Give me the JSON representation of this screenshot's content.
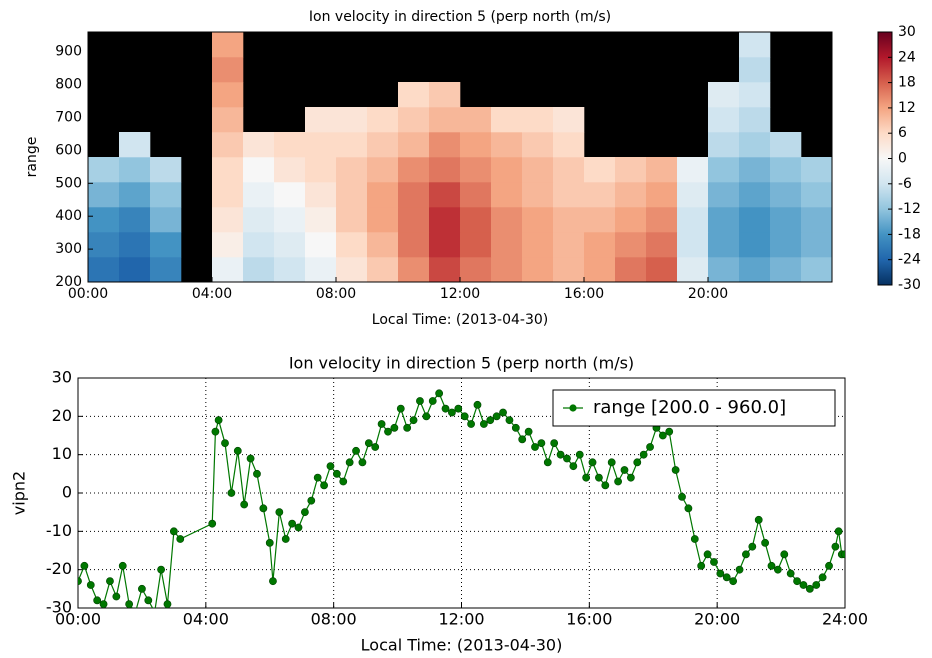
{
  "chart_data": [
    {
      "type": "heatmap",
      "title": "Ion velocity in direction 5 (perp north (m/s)",
      "x_label": "Local Time: (2013-04-30)",
      "y_label": "range",
      "x_edges": [
        0,
        1,
        2,
        3,
        4,
        5,
        6,
        7,
        8,
        9,
        10,
        11,
        12,
        13,
        14,
        15,
        16,
        17,
        18,
        19,
        20,
        21,
        22,
        23,
        24
      ],
      "y_edges": [
        200,
        276,
        352,
        428,
        504,
        580,
        656,
        732,
        808,
        884,
        960
      ],
      "values": [
        [
          -22,
          -24,
          -20,
          null,
          -2,
          -8,
          -6,
          -2,
          4,
          8,
          14,
          20,
          16,
          14,
          12,
          10,
          12,
          16,
          18,
          -4,
          -14,
          -16,
          -14,
          -12
        ],
        [
          -20,
          -22,
          -18,
          null,
          2,
          -6,
          -4,
          0,
          6,
          10,
          16,
          22,
          18,
          14,
          12,
          10,
          12,
          14,
          16,
          -6,
          -16,
          -18,
          -16,
          -14
        ],
        [
          -18,
          -20,
          -14,
          null,
          4,
          -4,
          -2,
          2,
          8,
          12,
          16,
          22,
          18,
          14,
          12,
          10,
          10,
          12,
          14,
          -6,
          -16,
          -18,
          -16,
          -14
        ],
        [
          -14,
          -16,
          -12,
          null,
          6,
          -2,
          0,
          4,
          8,
          12,
          16,
          20,
          16,
          12,
          10,
          8,
          8,
          10,
          12,
          -4,
          -14,
          -16,
          -14,
          -12
        ],
        [
          -10,
          -12,
          -8,
          null,
          6,
          0,
          4,
          6,
          8,
          10,
          14,
          16,
          14,
          12,
          10,
          8,
          6,
          8,
          10,
          -2,
          -12,
          -14,
          -12,
          -10
        ],
        [
          null,
          -6,
          null,
          null,
          8,
          4,
          6,
          6,
          6,
          8,
          10,
          14,
          12,
          10,
          8,
          6,
          null,
          null,
          null,
          null,
          -8,
          -10,
          -8,
          null
        ],
        [
          null,
          null,
          null,
          null,
          10,
          null,
          null,
          4,
          4,
          6,
          8,
          10,
          10,
          6,
          6,
          4,
          null,
          null,
          null,
          null,
          -6,
          -8,
          null,
          null
        ],
        [
          null,
          null,
          null,
          null,
          12,
          null,
          null,
          null,
          null,
          null,
          6,
          8,
          null,
          null,
          null,
          null,
          null,
          null,
          null,
          null,
          -4,
          -6,
          null,
          null
        ],
        [
          null,
          null,
          null,
          null,
          14,
          null,
          null,
          null,
          null,
          null,
          null,
          null,
          null,
          null,
          null,
          null,
          null,
          null,
          null,
          null,
          null,
          -8,
          null,
          null
        ],
        [
          null,
          null,
          null,
          null,
          12,
          null,
          null,
          null,
          null,
          null,
          null,
          null,
          null,
          null,
          null,
          null,
          null,
          null,
          null,
          null,
          null,
          -6,
          null,
          null
        ]
      ],
      "xlim": [
        0,
        24
      ],
      "ylim": [
        200,
        960
      ],
      "xticks": [
        {
          "value": 0,
          "label": "00:00"
        },
        {
          "value": 4,
          "label": "04:00"
        },
        {
          "value": 8,
          "label": "08:00"
        },
        {
          "value": 12,
          "label": "12:00"
        },
        {
          "value": 16,
          "label": "16:00"
        },
        {
          "value": 20,
          "label": "20:00"
        }
      ],
      "yticks": [
        200,
        300,
        400,
        500,
        600,
        700,
        800,
        900
      ],
      "zlim": [
        -30,
        30
      ],
      "zticks": [
        30,
        24,
        18,
        12,
        6,
        0,
        -6,
        -12,
        -18,
        -24,
        -30
      ],
      "colormap": [
        "#053061",
        "#2166ac",
        "#4393c3",
        "#92c5de",
        "#d1e5f0",
        "#f7f7f7",
        "#fddbc7",
        "#f4a582",
        "#d6604d",
        "#b2182b",
        "#67001f"
      ],
      "nan_color": "#000000"
    },
    {
      "type": "line",
      "title": "Ion velocity in direction 5 (perp north (m/s)",
      "x_label": "Local Time: (2013-04-30)",
      "y_label": "vipn2",
      "x": [
        0,
        0.2,
        0.4,
        0.6,
        0.8,
        1.0,
        1.2,
        1.4,
        1.6,
        1.8,
        2.0,
        2.2,
        2.4,
        2.6,
        2.8,
        3.0,
        3.2,
        4.2,
        4.3,
        4.4,
        4.6,
        4.8,
        5.0,
        5.2,
        5.4,
        5.6,
        5.8,
        6.0,
        6.1,
        6.3,
        6.5,
        6.7,
        6.9,
        7.1,
        7.3,
        7.5,
        7.7,
        7.9,
        8.1,
        8.3,
        8.5,
        8.7,
        8.9,
        9.1,
        9.3,
        9.5,
        9.7,
        9.9,
        10.1,
        10.3,
        10.5,
        10.7,
        10.9,
        11.1,
        11.3,
        11.5,
        11.7,
        11.9,
        12.1,
        12.3,
        12.5,
        12.7,
        12.9,
        13.1,
        13.3,
        13.5,
        13.7,
        13.9,
        14.1,
        14.3,
        14.5,
        14.7,
        14.9,
        15.1,
        15.3,
        15.5,
        15.7,
        15.9,
        16.1,
        16.3,
        16.5,
        16.7,
        16.9,
        17.1,
        17.3,
        17.5,
        17.7,
        17.9,
        18.1,
        18.3,
        18.5,
        18.7,
        18.9,
        19.1,
        19.3,
        19.5,
        19.7,
        19.9,
        20.1,
        20.3,
        20.5,
        20.7,
        20.9,
        21.1,
        21.3,
        21.5,
        21.7,
        21.9,
        22.1,
        22.3,
        22.5,
        22.7,
        22.9,
        23.1,
        23.3,
        23.5,
        23.7,
        23.8,
        23.9,
        24.0
      ],
      "series": [
        {
          "name": "range [200.0 - 960.0]",
          "color": "#007700",
          "values": [
            -23,
            -19,
            -24,
            -28,
            -29,
            -23,
            -27,
            -19,
            -29,
            -31,
            -25,
            -28,
            -31,
            -20,
            -29,
            -10,
            -12,
            -8,
            16,
            19,
            13,
            0,
            11,
            -3,
            9,
            5,
            -4,
            -13,
            -23,
            -5,
            -12,
            -8,
            -9,
            -5,
            -2,
            4,
            2,
            7,
            5,
            3,
            8,
            11,
            8,
            13,
            12,
            18,
            16,
            17,
            22,
            17,
            19,
            24,
            20,
            24,
            26,
            22,
            21,
            22,
            20,
            18,
            23,
            18,
            19,
            20,
            21,
            19,
            17,
            14,
            16,
            12,
            13,
            8,
            13,
            10,
            9,
            7,
            10,
            4,
            8,
            4,
            2,
            8,
            3,
            6,
            4,
            8,
            10,
            12,
            17,
            15,
            16,
            6,
            -1,
            -4,
            -12,
            -19,
            -16,
            -18,
            -21,
            -22,
            -23,
            -20,
            -16,
            -14,
            -7,
            -13,
            -19,
            -20,
            -16,
            -21,
            -23,
            -24,
            -25,
            -24,
            -22,
            -19,
            -14,
            -10,
            -16,
            -16
          ]
        }
      ],
      "xlim": [
        0,
        24
      ],
      "ylim": [
        -30,
        30
      ],
      "xticks": [
        {
          "value": 0,
          "label": "00:00"
        },
        {
          "value": 4,
          "label": "04:00"
        },
        {
          "value": 8,
          "label": "08:00"
        },
        {
          "value": 12,
          "label": "12:00"
        },
        {
          "value": 16,
          "label": "16:00"
        },
        {
          "value": 20,
          "label": "20:00"
        },
        {
          "value": 24,
          "label": "24:00"
        }
      ],
      "yticks": [
        -30,
        -20,
        -10,
        0,
        10,
        20,
        30
      ],
      "grid": true,
      "legend": "upper right"
    }
  ]
}
